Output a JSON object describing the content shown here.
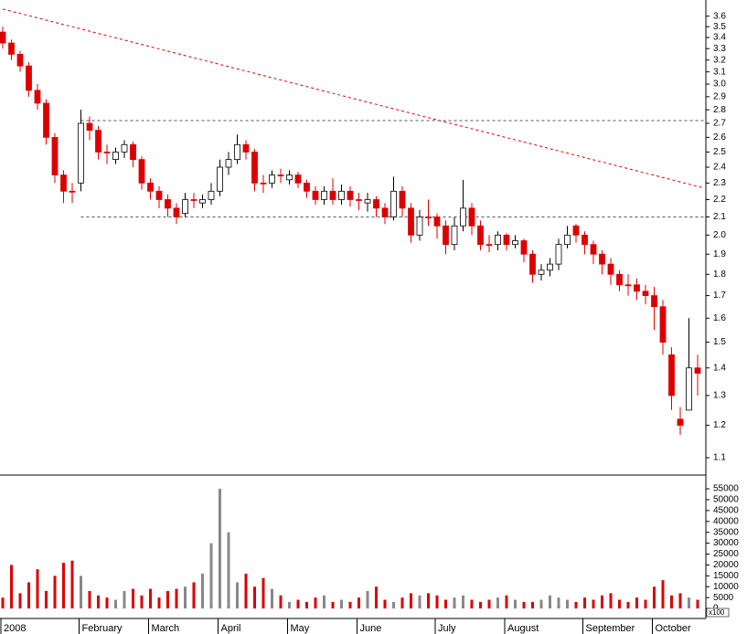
{
  "chart_data": [
    {
      "type": "candlestick",
      "categories": [
        "2008",
        null,
        null,
        null,
        null,
        null,
        null,
        null,
        null,
        "February",
        null,
        null,
        null,
        null,
        null,
        null,
        null,
        "March",
        null,
        null,
        null,
        null,
        null,
        null,
        null,
        "April",
        null,
        null,
        null,
        null,
        null,
        null,
        null,
        "May",
        null,
        null,
        null,
        null,
        null,
        null,
        null,
        "June",
        null,
        null,
        null,
        null,
        null,
        null,
        null,
        null,
        "July",
        null,
        null,
        null,
        null,
        null,
        null,
        null,
        "August",
        null,
        null,
        null,
        null,
        null,
        null,
        null,
        null,
        "September",
        null,
        null,
        null,
        null,
        null,
        null,
        null,
        "October",
        null,
        null,
        null,
        null,
        null
      ],
      "open": [
        3.45,
        3.35,
        3.25,
        3.15,
        2.95,
        2.85,
        2.6,
        2.35,
        2.25,
        2.3,
        2.7,
        2.65,
        2.5,
        2.45,
        2.5,
        2.55,
        2.45,
        2.3,
        2.25,
        2.2,
        2.15,
        2.12,
        2.2,
        2.18,
        2.2,
        2.25,
        2.4,
        2.45,
        2.55,
        2.5,
        2.3,
        2.3,
        2.35,
        2.32,
        2.35,
        2.3,
        2.25,
        2.2,
        2.25,
        2.2,
        2.25,
        2.2,
        2.18,
        2.2,
        2.15,
        2.1,
        2.25,
        2.15,
        2.0,
        2.1,
        2.1,
        2.05,
        1.95,
        2.05,
        2.15,
        2.05,
        1.95,
        1.95,
        2.0,
        1.95,
        1.97,
        1.9,
        1.8,
        1.82,
        1.85,
        1.95,
        2.05,
        2.0,
        1.95,
        1.9,
        1.85,
        1.8,
        1.75,
        1.75,
        1.72,
        1.7,
        1.65,
        1.45,
        1.22,
        1.25,
        1.4
      ],
      "high": [
        3.5,
        3.38,
        3.28,
        3.18,
        3.0,
        2.88,
        2.63,
        2.38,
        2.3,
        2.8,
        2.75,
        2.68,
        2.55,
        2.53,
        2.58,
        2.57,
        2.47,
        2.33,
        2.28,
        2.23,
        2.18,
        2.24,
        2.24,
        2.23,
        2.3,
        2.45,
        2.5,
        2.62,
        2.58,
        2.52,
        2.35,
        2.38,
        2.39,
        2.38,
        2.37,
        2.32,
        2.28,
        2.28,
        2.33,
        2.29,
        2.28,
        2.24,
        2.24,
        2.22,
        2.18,
        2.34,
        2.28,
        2.18,
        2.14,
        2.2,
        2.12,
        2.08,
        2.1,
        2.32,
        2.18,
        2.08,
        2.0,
        2.02,
        2.01,
        2.0,
        1.98,
        1.92,
        1.85,
        1.88,
        1.98,
        2.05,
        2.06,
        2.02,
        1.97,
        1.92,
        1.88,
        1.82,
        1.8,
        1.78,
        1.75,
        1.74,
        1.68,
        1.48,
        1.26,
        1.6,
        1.45
      ],
      "low": [
        3.3,
        3.2,
        3.1,
        2.9,
        2.8,
        2.55,
        2.3,
        2.18,
        2.18,
        2.25,
        2.58,
        2.45,
        2.42,
        2.42,
        2.46,
        2.4,
        2.26,
        2.2,
        2.15,
        2.1,
        2.06,
        2.1,
        2.15,
        2.15,
        2.17,
        2.22,
        2.35,
        2.42,
        2.45,
        2.25,
        2.24,
        2.27,
        2.3,
        2.29,
        2.27,
        2.21,
        2.17,
        2.17,
        2.17,
        2.17,
        2.16,
        2.14,
        2.13,
        2.1,
        2.06,
        2.08,
        2.1,
        1.96,
        1.97,
        2.05,
        1.98,
        1.9,
        1.92,
        2.02,
        2.0,
        1.92,
        1.91,
        1.92,
        1.92,
        1.93,
        1.86,
        1.76,
        1.77,
        1.79,
        1.82,
        1.93,
        1.96,
        1.9,
        1.85,
        1.8,
        1.75,
        1.72,
        1.7,
        1.68,
        1.66,
        1.55,
        1.45,
        1.25,
        1.17,
        1.25,
        1.3
      ],
      "close": [
        3.35,
        3.25,
        3.15,
        2.95,
        2.85,
        2.6,
        2.35,
        2.25,
        2.25,
        2.7,
        2.65,
        2.5,
        2.5,
        2.5,
        2.55,
        2.45,
        2.3,
        2.25,
        2.2,
        2.15,
        2.1,
        2.2,
        2.2,
        2.2,
        2.25,
        2.4,
        2.45,
        2.55,
        2.5,
        2.3,
        2.3,
        2.35,
        2.35,
        2.35,
        2.3,
        2.25,
        2.2,
        2.25,
        2.2,
        2.25,
        2.2,
        2.2,
        2.2,
        2.15,
        2.1,
        2.25,
        2.15,
        2.0,
        2.1,
        2.1,
        2.05,
        1.95,
        2.05,
        2.15,
        2.05,
        1.95,
        1.95,
        2.0,
        1.95,
        1.97,
        1.9,
        1.8,
        1.82,
        1.85,
        1.95,
        2.0,
        2.0,
        1.95,
        1.9,
        1.85,
        1.8,
        1.75,
        1.75,
        1.72,
        1.7,
        1.65,
        1.5,
        1.3,
        1.2,
        1.4,
        1.38
      ],
      "up_color": "#ffffff",
      "down_color": "#dd0000",
      "log_scale": true,
      "ylim": [
        1.05,
        3.76
      ],
      "yticks": [
        1.1,
        1.2,
        1.3,
        1.4,
        1.5,
        1.6,
        1.7,
        1.8,
        1.9,
        {
          "value": 2,
          "label": "2.0"
        },
        2.1,
        2.2,
        2.3,
        2.4,
        2.5,
        2.6,
        2.7,
        2.8,
        2.9,
        {
          "value": 3,
          "label": "3.0"
        },
        3.1,
        3.2,
        3.3,
        3.4,
        3.5,
        3.6
      ],
      "trend_lines": [
        {
          "start": [
            0,
            3.67
          ],
          "end": [
            80.7,
            2.27
          ],
          "color": "#dd0000"
        },
        {
          "start": [
            9,
            2.72
          ],
          "end": [
            80.7,
            2.72
          ],
          "color": "#555555"
        },
        {
          "start": [
            9,
            2.1
          ],
          "end": [
            80.7,
            2.1
          ],
          "color": "#555555"
        }
      ]
    },
    {
      "type": "bar",
      "values": [
        5000,
        20000,
        7000,
        12000,
        18000,
        8000,
        15000,
        21000,
        22000,
        15000,
        8000,
        6000,
        5000,
        4000,
        8000,
        9000,
        6000,
        9000,
        5000,
        8000,
        9000,
        10000,
        12000,
        16000,
        30000,
        55000,
        35000,
        12000,
        16000,
        10000,
        14000,
        9000,
        6000,
        3000,
        4000,
        3000,
        5000,
        6000,
        3000,
        4000,
        3000,
        5000,
        8000,
        10000,
        4000,
        3000,
        5000,
        7000,
        6000,
        7000,
        6000,
        4000,
        5000,
        6000,
        4000,
        3000,
        4000,
        5000,
        6000,
        4000,
        3000,
        3000,
        4000,
        6000,
        5000,
        4000,
        3000,
        5000,
        4000,
        6000,
        7000,
        4000,
        3000,
        5000,
        4000,
        10000,
        13000,
        6000,
        7000,
        5000,
        4000
      ],
      "up_color": "#888888",
      "down_color": "#dd0000",
      "ylim": [
        -4600,
        60900
      ],
      "yticks": [
        0,
        5000,
        10000,
        15000,
        20000,
        25000,
        30000,
        35000,
        40000,
        45000,
        50000,
        55000
      ],
      "unit_label": "x100"
    }
  ]
}
